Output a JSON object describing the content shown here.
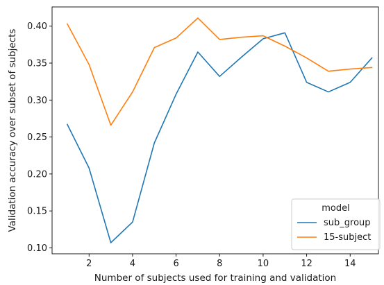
{
  "chart_data": {
    "type": "line",
    "x": [
      1,
      2,
      3,
      4,
      5,
      6,
      7,
      8,
      9,
      10,
      11,
      12,
      13,
      14,
      15
    ],
    "series": [
      {
        "name": "sub_group",
        "color": "#1f77b4",
        "values": [
          0.267,
          0.208,
          0.107,
          0.135,
          0.242,
          0.308,
          0.365,
          0.332,
          0.358,
          0.383,
          0.391,
          0.324,
          0.311,
          0.324,
          0.357
        ]
      },
      {
        "name": "15-subject",
        "color": "#ff7f0e",
        "values": [
          0.403,
          0.348,
          0.266,
          0.311,
          0.371,
          0.384,
          0.411,
          0.382,
          0.385,
          0.387,
          0.373,
          0.357,
          0.339,
          0.342,
          0.344
        ]
      }
    ],
    "xlabel": "Number of subjects used for training and validation",
    "ylabel": "Validation accuracy over subset of subjects",
    "xticks": [
      2,
      4,
      6,
      8,
      10,
      12,
      14
    ],
    "yticks": [
      0.1,
      0.15,
      0.2,
      0.25,
      0.3,
      0.35,
      0.4
    ],
    "ytick_labels": [
      "0.10",
      "0.15",
      "0.20",
      "0.25",
      "0.30",
      "0.35",
      "0.40"
    ],
    "xlim": [
      0.3,
      15.3
    ],
    "ylim": [
      0.092,
      0.426
    ],
    "grid": false,
    "legend": {
      "title": "model",
      "placement": "lower-right"
    }
  }
}
